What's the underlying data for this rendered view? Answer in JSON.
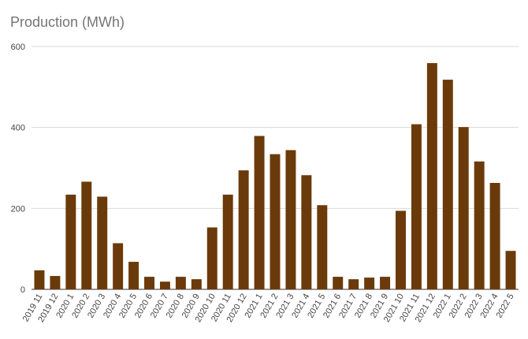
{
  "chart_data": {
    "type": "bar",
    "title": "Production (MWh)",
    "xlabel": "",
    "ylabel": "",
    "ylim": [
      0,
      600
    ],
    "yticks": [
      0,
      200,
      400,
      600
    ],
    "grid": true,
    "bar_color": "#6B3A0A",
    "grid_color": "#d9d9d9",
    "categories": [
      "2019 11",
      "2019 12",
      "2020 1",
      "2020 2",
      "2020 3",
      "2020 4",
      "2020 5",
      "2020 6",
      "2020 7",
      "2020 8",
      "2020 9",
      "2020 10",
      "2020 11",
      "2020 12",
      "2021 1",
      "2021 2",
      "2021 3",
      "2021 4",
      "2021 5",
      "2021 6",
      "2021 7",
      "2021 8",
      "2021 9",
      "2021 10",
      "2021 11",
      "2021 12",
      "2022 1",
      "2022 2",
      "2022 3",
      "2022 4",
      "2022 5"
    ],
    "values": [
      47,
      33,
      234,
      266,
      229,
      114,
      68,
      31,
      19,
      31,
      25,
      153,
      234,
      294,
      379,
      334,
      344,
      282,
      208,
      31,
      25,
      29,
      31,
      194,
      408,
      559,
      518,
      401,
      316,
      263,
      95
    ]
  }
}
